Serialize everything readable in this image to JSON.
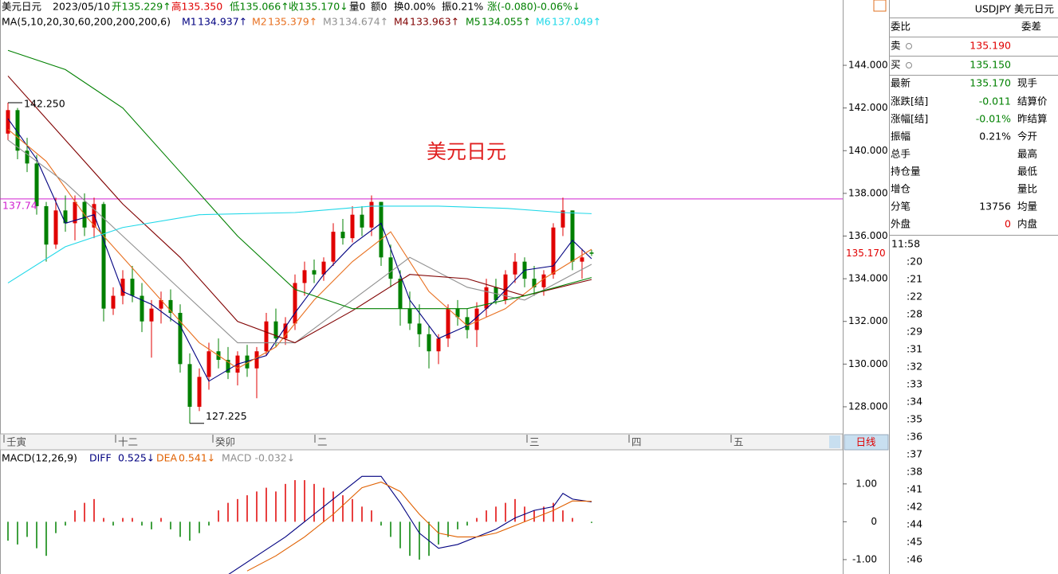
{
  "chart_data": [
    {
      "type": "candlestick",
      "title": "美元日元",
      "date": "2023/05/10",
      "header_items": [
        {
          "text": "开135.229↑",
          "color": "#008000"
        },
        {
          "text": "高135.350",
          "color": "#e00000"
        },
        {
          "text": "低135.066↑",
          "color": "#008000"
        },
        {
          "text": "收135.170↓",
          "color": "#008000"
        },
        {
          "text": "量0",
          "color": "#000000"
        },
        {
          "text": "额0",
          "color": "#000000"
        },
        {
          "text": "换0.00%",
          "color": "#000000"
        },
        {
          "text": "振0.21%",
          "color": "#000000"
        },
        {
          "text": "涨(-0.080)-0.06%↓",
          "color": "#008000"
        }
      ],
      "ma_label": "MA(5,10,20,30,60,200,200,200,6)",
      "watermark": "美元日元",
      "up_color": "#e00000",
      "down_color": "#008000",
      "ohlc": [
        [
          140.8,
          142.25,
          140.5,
          141.9
        ],
        [
          141.9,
          142.0,
          139.6,
          140.0
        ],
        [
          140.0,
          140.6,
          139.0,
          139.4
        ],
        [
          139.4,
          139.8,
          137.0,
          137.4
        ],
        [
          137.4,
          137.6,
          134.8,
          135.6
        ],
        [
          135.6,
          137.8,
          135.4,
          137.2
        ],
        [
          137.2,
          137.9,
          136.2,
          136.6
        ],
        [
          136.6,
          137.9,
          135.8,
          137.6
        ],
        [
          137.6,
          138.0,
          136.0,
          136.4
        ],
        [
          136.4,
          137.8,
          135.9,
          137.5
        ],
        [
          137.5,
          137.6,
          132.0,
          132.6
        ],
        [
          132.6,
          133.6,
          132.3,
          133.2
        ],
        [
          133.2,
          134.4,
          132.8,
          134.0
        ],
        [
          134.0,
          134.6,
          132.9,
          133.2
        ],
        [
          133.2,
          133.8,
          131.5,
          132.0
        ],
        [
          132.0,
          133.0,
          130.3,
          132.6
        ],
        [
          132.6,
          133.4,
          131.9,
          133.0
        ],
        [
          133.0,
          133.5,
          132.0,
          132.4
        ],
        [
          132.4,
          132.8,
          129.6,
          130.0
        ],
        [
          130.0,
          130.5,
          127.225,
          128.0
        ],
        [
          128.0,
          129.8,
          127.8,
          129.4
        ],
        [
          129.4,
          131.0,
          128.8,
          130.6
        ],
        [
          130.6,
          131.2,
          129.8,
          130.2
        ],
        [
          130.2,
          130.8,
          129.3,
          129.6
        ],
        [
          129.6,
          130.6,
          129.0,
          130.4
        ],
        [
          130.4,
          130.9,
          129.4,
          129.8
        ],
        [
          129.8,
          130.8,
          128.4,
          130.6
        ],
        [
          130.6,
          132.4,
          130.4,
          132.0
        ],
        [
          132.0,
          132.6,
          130.8,
          131.2
        ],
        [
          131.2,
          132.2,
          130.9,
          131.9
        ],
        [
          131.9,
          134.2,
          131.6,
          133.8
        ],
        [
          133.8,
          134.8,
          133.2,
          134.4
        ],
        [
          134.4,
          134.9,
          133.8,
          134.2
        ],
        [
          134.2,
          135.0,
          133.9,
          134.8
        ],
        [
          134.8,
          136.6,
          134.6,
          136.2
        ],
        [
          136.2,
          136.8,
          135.6,
          135.9
        ],
        [
          135.9,
          137.4,
          135.7,
          137.0
        ],
        [
          137.0,
          137.4,
          136.0,
          136.4
        ],
        [
          136.4,
          137.9,
          136.0,
          137.6
        ],
        [
          137.6,
          137.6,
          134.6,
          135.0
        ],
        [
          135.0,
          135.6,
          133.6,
          134.0
        ],
        [
          134.0,
          134.4,
          131.8,
          132.6
        ],
        [
          132.6,
          133.4,
          131.6,
          131.9
        ],
        [
          131.9,
          132.8,
          130.8,
          131.4
        ],
        [
          131.4,
          131.8,
          129.8,
          130.6
        ],
        [
          130.6,
          131.4,
          130.0,
          131.2
        ],
        [
          131.2,
          132.8,
          130.8,
          132.6
        ],
        [
          132.6,
          133.0,
          131.8,
          132.2
        ],
        [
          132.2,
          132.6,
          131.2,
          131.6
        ],
        [
          131.6,
          132.9,
          130.8,
          132.6
        ],
        [
          132.6,
          134.0,
          132.2,
          133.6
        ],
        [
          133.6,
          134.0,
          132.8,
          133.0
        ],
        [
          133.0,
          134.4,
          132.8,
          134.2
        ],
        [
          134.2,
          135.2,
          133.8,
          134.8
        ],
        [
          134.8,
          135.0,
          133.6,
          134.0
        ],
        [
          134.0,
          134.6,
          133.2,
          133.6
        ],
        [
          133.6,
          134.4,
          133.2,
          134.2
        ],
        [
          134.2,
          136.6,
          134.0,
          136.4
        ],
        [
          136.4,
          137.8,
          136.0,
          137.2
        ],
        [
          137.2,
          137.2,
          134.4,
          134.8
        ],
        [
          134.8,
          135.4,
          134.0,
          135.0
        ],
        [
          135.229,
          135.35,
          135.066,
          135.17
        ]
      ],
      "series": [
        {
          "name": "M1",
          "legend_text": "134.937↑",
          "color": "#000080",
          "x": [
            0,
            3,
            6,
            9,
            12,
            15,
            18,
            21,
            24,
            27,
            30,
            33,
            36,
            39,
            42,
            45,
            48,
            51,
            54,
            57,
            59,
            61
          ],
          "values": [
            141.5,
            139.6,
            136.6,
            137.0,
            133.4,
            132.8,
            131.8,
            129.2,
            130.0,
            130.4,
            132.4,
            134.2,
            135.6,
            136.6,
            133.0,
            131.2,
            131.8,
            133.0,
            134.4,
            134.6,
            135.8,
            134.937
          ]
        },
        {
          "name": "M2",
          "legend_text": "135.379↑",
          "color": "#e87020",
          "x": [
            0,
            4,
            8,
            12,
            16,
            20,
            24,
            28,
            32,
            36,
            40,
            44,
            48,
            52,
            56,
            61
          ],
          "values": [
            141.0,
            139.5,
            137.0,
            135.0,
            133.0,
            131.0,
            129.8,
            130.8,
            133.0,
            134.8,
            136.2,
            133.4,
            131.8,
            132.6,
            134.0,
            135.379
          ]
        },
        {
          "name": "M3",
          "legend_text": "134.674↑",
          "color": "#909090",
          "x": [
            0,
            6,
            12,
            18,
            24,
            30,
            36,
            42,
            48,
            54,
            61
          ],
          "values": [
            140.5,
            138.5,
            136.0,
            133.5,
            131.0,
            131.0,
            133.0,
            135.0,
            133.6,
            133.0,
            134.674
          ]
        },
        {
          "name": "M4",
          "legend_text": "133.963↑",
          "color": "#800000",
          "x": [
            0,
            6,
            12,
            18,
            24,
            30,
            36,
            42,
            48,
            54,
            61
          ],
          "values": [
            143.5,
            140.5,
            137.5,
            135.0,
            132.0,
            131.0,
            132.5,
            134.2,
            134.0,
            133.2,
            133.963
          ]
        },
        {
          "name": "M5",
          "legend_text": "134.055↑",
          "color": "#008000",
          "x": [
            0,
            6,
            12,
            18,
            24,
            30,
            36,
            42,
            48,
            54,
            61
          ],
          "values": [
            144.7,
            143.8,
            142.0,
            139.0,
            136.0,
            133.5,
            132.6,
            132.6,
            132.6,
            133.2,
            134.055
          ]
        },
        {
          "name": "M6",
          "legend_text": "137.049↑",
          "color": "#20d8e8",
          "x": [
            0,
            6,
            12,
            20,
            30,
            38,
            45,
            52,
            58,
            61
          ],
          "values": [
            133.8,
            135.5,
            136.4,
            137.0,
            137.1,
            137.4,
            137.4,
            137.3,
            137.1,
            137.049
          ]
        }
      ],
      "hline": {
        "value": 137.74,
        "color": "#d020d0"
      },
      "extremes": [
        {
          "value": 142.25,
          "label": "142.250"
        },
        127.225
      ],
      "last_price": {
        "value": 135.17,
        "label": "135.170"
      },
      "ylim": [
        126.73,
        147.06
      ],
      "yticks": [
        {
          "value": 128,
          "label": "128.000"
        },
        {
          "value": 130,
          "label": "130.000"
        },
        {
          "value": 132,
          "label": "132.000"
        },
        {
          "value": 134,
          "label": "134.000"
        },
        {
          "value": 136,
          "label": "136.000"
        },
        {
          "value": 138,
          "label": "138.000"
        },
        {
          "value": 140,
          "label": "140.000"
        },
        {
          "value": 142,
          "label": "142.000"
        },
        {
          "value": 144,
          "label": "144.000"
        }
      ],
      "x_axis_labels": [
        "壬寅",
        "十二",
        "癸卯",
        "二",
        "三",
        "四",
        "五"
      ],
      "period_button": "日线"
    },
    {
      "type": "macd",
      "title": "MACD(12,26,9)",
      "up_color": "#e00000",
      "down_color": "#008000",
      "values": [
        -0.5,
        -0.6,
        -0.4,
        -0.7,
        -0.9,
        -0.3,
        -0.1,
        0.3,
        0.5,
        0.6,
        0.1,
        -0.1,
        0.1,
        0.1,
        -0.1,
        -0.2,
        0.1,
        -0.2,
        -0.4,
        -0.5,
        -0.3,
        -0.1,
        0.3,
        0.5,
        0.6,
        0.7,
        0.8,
        0.9,
        0.8,
        1.0,
        1.1,
        1.1,
        1.0,
        0.9,
        0.8,
        0.7,
        0.6,
        0.4,
        0.3,
        -0.1,
        -0.4,
        -0.7,
        -0.9,
        -1.0,
        -0.9,
        -0.6,
        -0.4,
        -0.2,
        -0.1,
        0.1,
        0.3,
        0.4,
        0.5,
        0.6,
        0.4,
        0.3,
        0.4,
        0.5,
        0.3,
        0.1,
        0.0,
        -0.032
      ],
      "bar_legend": "MACD -0.032↓",
      "bar_legend_color": "#909090",
      "series": [
        {
          "name": "DIFF",
          "legend_text": "0.525↓",
          "color": "#000080",
          "x": [
            23,
            26,
            29,
            32,
            35,
            37,
            39,
            41,
            43,
            45,
            47,
            49,
            51,
            53,
            55,
            57,
            58,
            59,
            61
          ],
          "values": [
            -1.4,
            -0.9,
            -0.4,
            0.2,
            0.8,
            1.2,
            1.2,
            0.5,
            -0.3,
            -0.7,
            -0.6,
            -0.4,
            -0.2,
            0.1,
            0.3,
            0.4,
            0.75,
            0.6,
            0.525
          ]
        },
        {
          "name": "DEA",
          "legend_text": "0.541↓",
          "color": "#e06000",
          "x": [
            25,
            28,
            31,
            34,
            37,
            39,
            41,
            43,
            45,
            47,
            49,
            51,
            53,
            55,
            57,
            59,
            61
          ],
          "values": [
            -1.3,
            -0.9,
            -0.4,
            0.2,
            0.9,
            1.05,
            0.8,
            0.2,
            -0.3,
            -0.4,
            -0.4,
            -0.3,
            -0.1,
            0.1,
            0.3,
            0.55,
            0.541
          ]
        }
      ],
      "ylim": [
        -1.38,
        1.88
      ],
      "yticks": [
        {
          "value": 1,
          "label": "1.00"
        },
        0,
        {
          "value": -1,
          "label": "-1.00"
        }
      ]
    }
  ],
  "quote_panel": {
    "title": "USDJPY 美元日元",
    "rows": [
      {
        "label": "委比",
        "label2": "委差"
      },
      {
        "label": "卖",
        "value": "135.190",
        "value_color": "#e00000"
      },
      {
        "label": "买",
        "value": "135.150",
        "value_color": "#008000"
      },
      {
        "label": "最新",
        "value": "135.170",
        "value_color": "#008000",
        "label2": "现手"
      },
      {
        "label": "涨跌[结]",
        "value": "-0.011",
        "value_color": "#008000",
        "label2": "结算价"
      },
      {
        "label": "涨幅[结]",
        "value": "-0.01%",
        "value_color": "#008000",
        "label2": "昨结算"
      },
      {
        "label": "振幅",
        "value": "0.21%",
        "value_color": "#000000",
        "label2": "今开"
      },
      {
        "label": "总手",
        "label2": "最高"
      },
      {
        "label": "持仓量",
        "label2": "最低"
      },
      {
        "label": "增仓",
        "label2": "量比"
      },
      {
        "label": "分笔",
        "value": "13756",
        "value_color": "#000000",
        "label2": "均量"
      },
      {
        "label": "外盘",
        "value": "0",
        "value_color": "#e00000",
        "label2": "内盘"
      }
    ],
    "times": [
      "11:58",
      ":20",
      ":21",
      ":22",
      ":28",
      ":29",
      ":31",
      ":32",
      ":33",
      ":34",
      ":35",
      ":36",
      ":37",
      ":38",
      ":41",
      ":42",
      ":44",
      ":45",
      ":46"
    ]
  }
}
